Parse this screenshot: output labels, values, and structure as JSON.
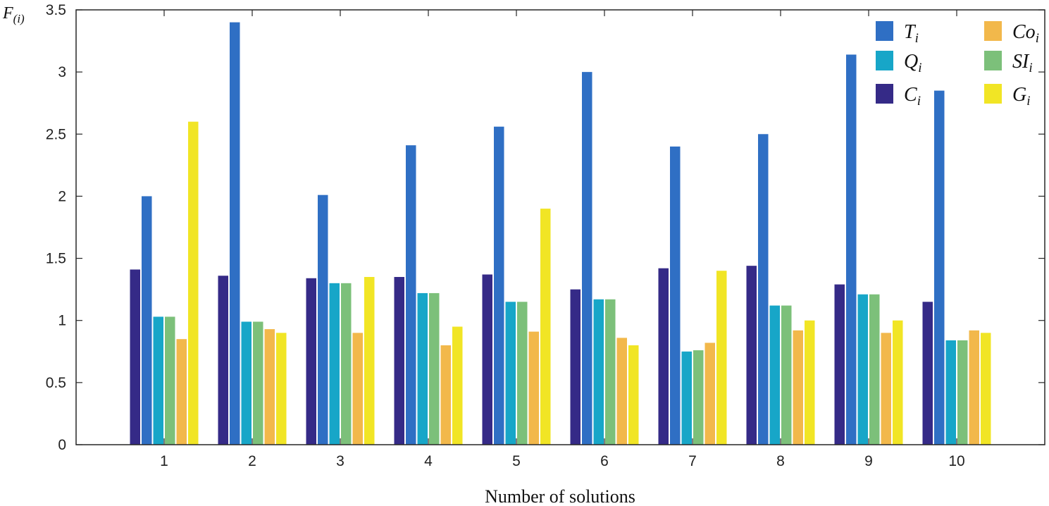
{
  "chart_data": {
    "type": "bar",
    "title": "",
    "xlabel": "Number of solutions",
    "ylabel": {
      "main": "F",
      "sub": "(i)"
    },
    "ylim": [
      0,
      3.5
    ],
    "yticks": [
      "0",
      "0.5",
      "1",
      "1.5",
      "2",
      "2.5",
      "3",
      "3.5"
    ],
    "grid": false,
    "legend_position": "top-right",
    "categories": [
      "1",
      "2",
      "3",
      "4",
      "5",
      "6",
      "7",
      "8",
      "9",
      "10"
    ],
    "series": [
      {
        "name": "C",
        "sub": "i",
        "color": "#352a87",
        "values": [
          1.41,
          1.36,
          1.34,
          1.35,
          1.37,
          1.25,
          1.42,
          1.44,
          1.29,
          1.15
        ]
      },
      {
        "name": "T",
        "sub": "i",
        "color": "#2f6fc4",
        "values": [
          2.0,
          3.4,
          2.01,
          2.41,
          2.56,
          3.0,
          2.4,
          2.5,
          3.14,
          2.85
        ]
      },
      {
        "name": "Q",
        "sub": "i",
        "color": "#17a6c8",
        "values": [
          1.03,
          0.99,
          1.3,
          1.22,
          1.15,
          1.17,
          0.75,
          1.12,
          1.21,
          0.84
        ]
      },
      {
        "name": "SI",
        "sub": "i",
        "color": "#7cc07a",
        "values": [
          1.03,
          0.99,
          1.3,
          1.22,
          1.15,
          1.17,
          0.76,
          1.12,
          1.21,
          0.84
        ]
      },
      {
        "name": "Co",
        "sub": "i",
        "color": "#f2b84b",
        "values": [
          0.85,
          0.93,
          0.9,
          0.8,
          0.91,
          0.86,
          0.82,
          0.92,
          0.9,
          0.92
        ]
      },
      {
        "name": "G",
        "sub": "i",
        "color": "#f1e525",
        "values": [
          2.6,
          0.9,
          1.35,
          0.95,
          1.9,
          0.8,
          1.4,
          1.0,
          1.0,
          0.9
        ]
      }
    ],
    "legend_order": [
      1,
      2,
      0,
      4,
      3,
      5
    ]
  }
}
